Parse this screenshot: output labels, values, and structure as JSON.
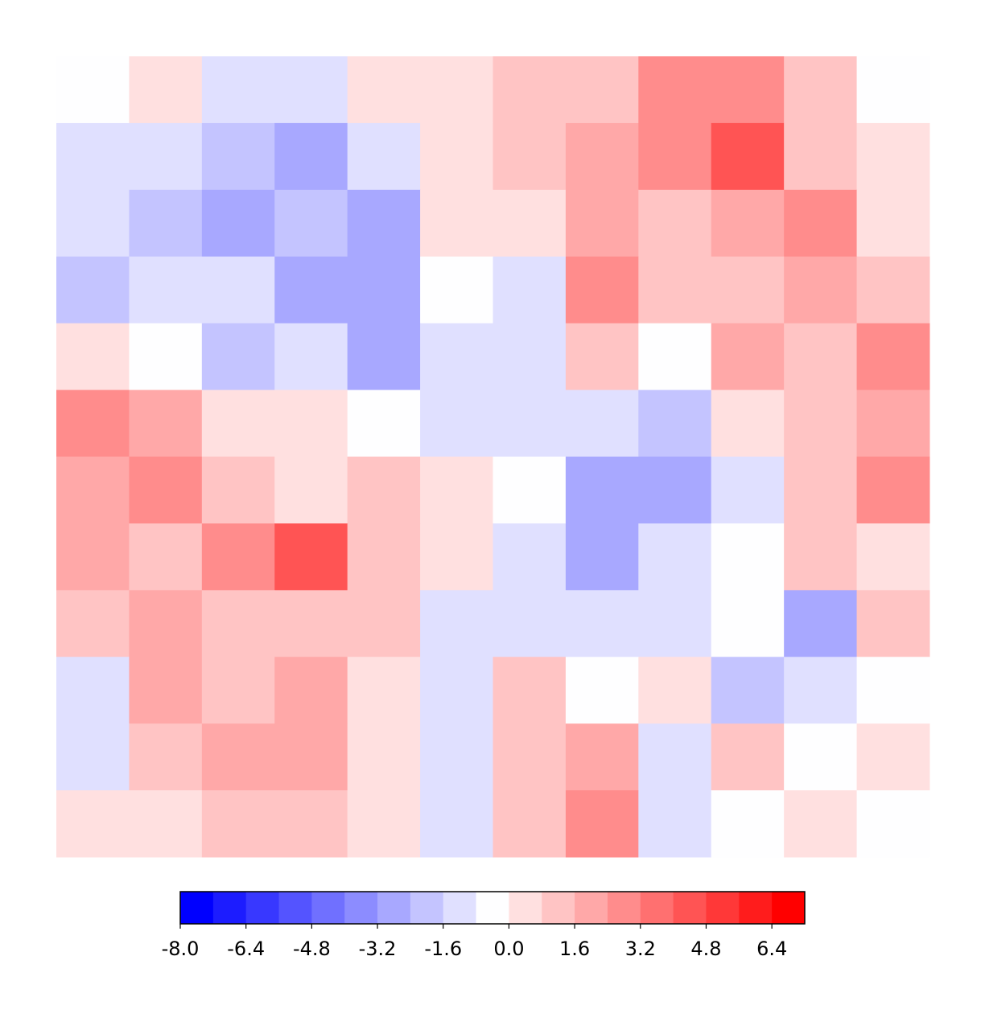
{
  "chart_data": {
    "type": "contour",
    "z": [
      [
        -0.5,
        0.5,
        -1,
        -1.5,
        0.5,
        0.3,
        1.5,
        1,
        3,
        3,
        1,
        -0.5
      ],
      [
        -1,
        -1,
        -2,
        -2.5,
        -1,
        0.5,
        1.5,
        2,
        2.5,
        4,
        1,
        0.5
      ],
      [
        -1.5,
        -2,
        -2.5,
        -2,
        -2.5,
        0.3,
        0.5,
        2,
        1.5,
        2,
        3,
        0.5
      ],
      [
        -2,
        -1.5,
        -1,
        -3,
        -2.5,
        -0.5,
        -1,
        3,
        1,
        1.5,
        2,
        1
      ],
      [
        0.5,
        -0.5,
        -2,
        -1.5,
        -2.5,
        -1.5,
        -1,
        1.5,
        -0.5,
        2,
        1.5,
        3
      ],
      [
        3,
        2,
        0.5,
        0.5,
        -0.5,
        -1.5,
        -1,
        -1.5,
        -2,
        0.5,
        1.5,
        2
      ],
      [
        2,
        3,
        1,
        0.5,
        1,
        0.5,
        -0.5,
        -3,
        -2.5,
        -1,
        1.5,
        3
      ],
      [
        2,
        1.5,
        2.5,
        4,
        1,
        0.5,
        -1,
        -2.5,
        -1.5,
        -0.5,
        1,
        0.5
      ],
      [
        1.5,
        2,
        1.5,
        1,
        1.5,
        -1,
        -1.5,
        -1,
        -1,
        -0.5,
        -3,
        1
      ],
      [
        -1.5,
        2,
        1.5,
        2,
        0.5,
        -1.5,
        1.5,
        -0.5,
        0.5,
        -2,
        -1,
        -0.5
      ],
      [
        -1,
        1,
        2,
        2,
        0.5,
        -1,
        1,
        2,
        -1.5,
        1,
        -0.5,
        0.5
      ],
      [
        0.5,
        0.5,
        1,
        1.5,
        0.5,
        -1,
        1.5,
        3,
        -1,
        -0.5,
        0.5,
        -0.5
      ]
    ],
    "levels": [
      -8.0,
      -7.2,
      -6.4,
      -5.6,
      -4.8,
      -4.0,
      -3.2,
      -2.4,
      -1.6,
      -0.8,
      0,
      0.8,
      1.6,
      2.4,
      3.2,
      4.0,
      4.8,
      5.6,
      6.4,
      7.2
    ],
    "colors": [
      "#0000ff",
      "#1c1cff",
      "#3838ff",
      "#5454ff",
      "#7070ff",
      "#8c8cff",
      "#a8a8ff",
      "#c4c4ff",
      "#e0e0ff",
      "#fefeff",
      "#ffe0e0",
      "#ffc4c4",
      "#ffa8a8",
      "#ff8c8c",
      "#ff7070",
      "#ff5454",
      "#ff3838",
      "#ff1c1c",
      "#ff0000"
    ],
    "clim": [
      -8.0,
      7.2
    ],
    "cticks": [
      {
        "value": -8,
        "label": "-8.0"
      },
      -6.4,
      -4.8,
      -3.2,
      -1.6,
      {
        "value": 0,
        "label": "0.0"
      },
      1.6,
      3.2,
      4.8,
      6.4
    ]
  }
}
